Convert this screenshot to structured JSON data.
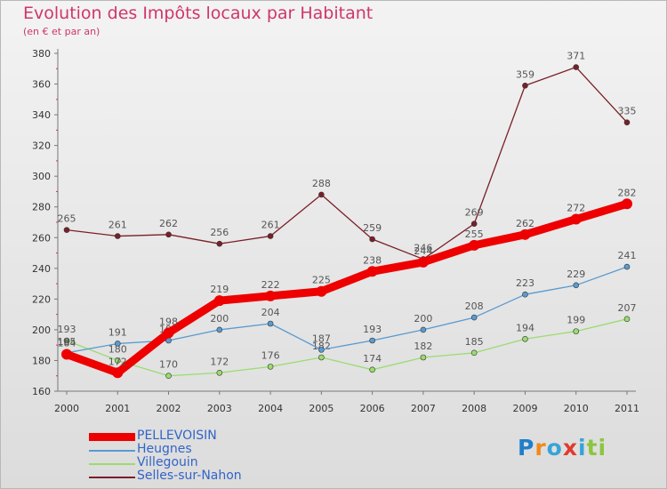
{
  "chart_data": {
    "type": "line",
    "title": "Evolution des Impôts locaux par Habitant",
    "subtitle": "(en € et par an)",
    "xlabel": "",
    "ylabel": "",
    "x": [
      "2000",
      "2001",
      "2002",
      "2003",
      "2004",
      "2005",
      "2006",
      "2007",
      "2008",
      "2009",
      "2010",
      "2011"
    ],
    "ylim": [
      160,
      380
    ],
    "yticks": [
      160,
      180,
      200,
      220,
      240,
      260,
      280,
      300,
      320,
      340,
      360,
      380
    ],
    "ytick_labels": [
      "160",
      "180",
      "200",
      "220",
      "240",
      "260",
      "280",
      "300",
      "320",
      "340",
      "360",
      "380"
    ],
    "legend_position": "bottom-left",
    "series": [
      {
        "name": "Selles-sur-Nahon",
        "color": "#7a1f28",
        "values": [
          265,
          261,
          262,
          256,
          261,
          288,
          259,
          246,
          269,
          359,
          371,
          335
        ]
      },
      {
        "name": "Villegouin",
        "color": "#9adc6e",
        "values": [
          193,
          180,
          170,
          172,
          176,
          182,
          174,
          182,
          185,
          194,
          199,
          207
        ]
      },
      {
        "name": "Heugnes",
        "color": "#5a9ad0",
        "values": [
          185,
          191,
          193,
          200,
          204,
          187,
          193,
          200,
          208,
          223,
          229,
          241
        ]
      },
      {
        "name": "PELLEVOISIN",
        "color": "#ee0000",
        "values": [
          184,
          172,
          198,
          219,
          222,
          225,
          238,
          244,
          255,
          262,
          272,
          282
        ]
      }
    ],
    "legend": [
      "PELLEVOISIN",
      "Heugnes",
      "Villegouin",
      "Selles-sur-Nahon"
    ]
  },
  "logo": {
    "letters": [
      "P",
      "r",
      "o",
      "x",
      "i",
      "t",
      "i"
    ],
    "colors": [
      "#1f7fc9",
      "#f08a1c",
      "#36a4d8",
      "#e23a2e",
      "#36a4d8",
      "#8cc63f",
      "#8cc63f"
    ]
  }
}
